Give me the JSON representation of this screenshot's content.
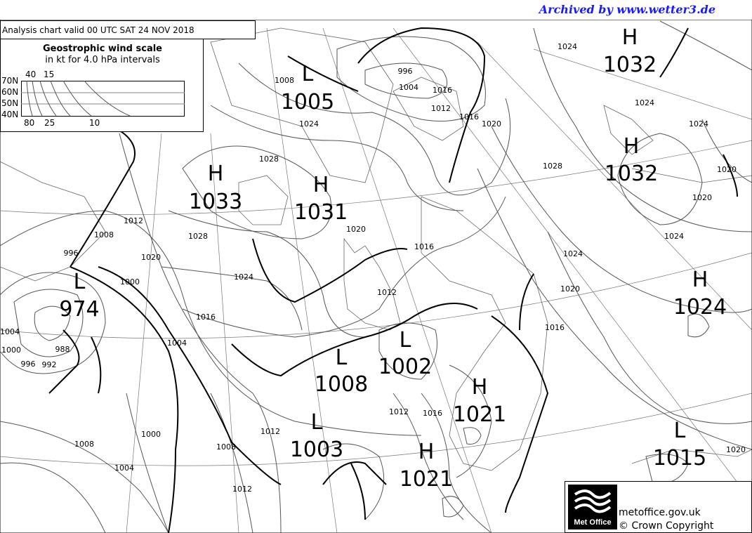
{
  "archive_note": "Archived by www.wetter3.de",
  "chart_title": "Analysis chart  valid 00 UTC SAT 24  NOV 2018",
  "wind_scale": {
    "title": "Geostrophic wind scale",
    "subtitle": "in kt for 4.0 hPa intervals",
    "latitudes": [
      "70N",
      "60N",
      "50N",
      "40N"
    ],
    "top_labels": [
      "40",
      "15"
    ],
    "bottom_labels": [
      "80",
      "25",
      "10"
    ]
  },
  "pressure_centres": [
    {
      "type": "L",
      "value": "1005"
    },
    {
      "type": "H",
      "value": "1032"
    },
    {
      "type": "H",
      "value": "1032"
    },
    {
      "type": "H",
      "value": "1033"
    },
    {
      "type": "H",
      "value": "1031"
    },
    {
      "type": "L",
      "value": "974"
    },
    {
      "type": "H",
      "value": "1024"
    },
    {
      "type": "L",
      "value": "1008"
    },
    {
      "type": "L",
      "value": "1002"
    },
    {
      "type": "H",
      "value": "1021"
    },
    {
      "type": "L",
      "value": "1003"
    },
    {
      "type": "H",
      "value": "1021"
    },
    {
      "type": "L",
      "value": "1015"
    }
  ],
  "isobar_labels": [
    "996",
    "1004",
    "1012",
    "1016",
    "1020",
    "1024",
    "1028",
    "1024",
    "1028",
    "1020",
    "1028",
    "1024",
    "1016",
    "1012",
    "1008",
    "1000",
    "996",
    "1020",
    "1016",
    "1024",
    "1012",
    "988",
    "992",
    "996",
    "1004",
    "1000",
    "1004",
    "1008",
    "1004",
    "1008",
    "1000",
    "1012",
    "1008",
    "1012",
    "1016",
    "1016",
    "1020",
    "1024",
    "1020",
    "1024",
    "1020",
    "1020",
    "1016",
    "1024",
    "1012"
  ],
  "logo": {
    "text": "Met Office",
    "site": "metoffice.gov.uk",
    "copyright": "© Crown Copyright"
  }
}
